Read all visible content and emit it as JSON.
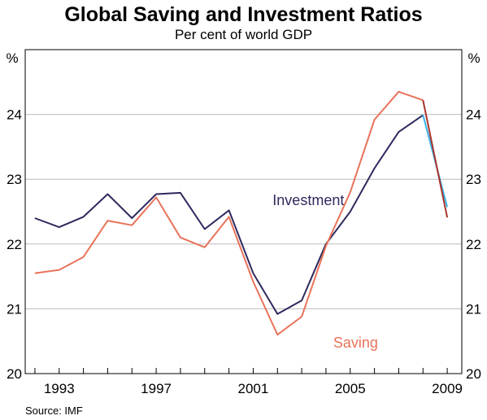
{
  "title": "Global Saving and Investment Ratios",
  "subtitle": "Per cent of world GDP",
  "source": "Source: IMF",
  "chart_data": {
    "type": "line",
    "x": [
      1992,
      1993,
      1994,
      1995,
      1996,
      1997,
      1998,
      1999,
      2000,
      2001,
      2002,
      2003,
      2004,
      2005,
      2006,
      2007,
      2008,
      2009
    ],
    "series": [
      {
        "name": "Investment",
        "color": "#2e2a5e",
        "values": [
          22.4,
          22.26,
          22.42,
          22.77,
          22.4,
          22.77,
          22.79,
          22.23,
          22.52,
          21.55,
          20.92,
          21.13,
          22.0,
          22.5,
          23.17,
          23.73,
          23.99,
          22.57
        ],
        "forecast_from": 2008,
        "forecast_color": "#3ab4e6"
      },
      {
        "name": "Saving",
        "color": "#e8735a",
        "values": [
          21.55,
          21.6,
          21.8,
          22.36,
          22.29,
          22.72,
          22.1,
          21.95,
          22.42,
          21.42,
          20.6,
          20.88,
          21.97,
          22.8,
          23.92,
          24.35,
          24.22,
          22.41
        ],
        "forecast_from": 2008,
        "forecast_color": "#a8322c"
      }
    ],
    "ylim": [
      20,
      25
    ],
    "xlim": [
      1991.6,
      2009.6
    ],
    "yticks": [
      20,
      21,
      22,
      23,
      24
    ],
    "ytick_labels": [
      "20",
      "21",
      "22",
      "23",
      "24"
    ],
    "xticks": [
      1992,
      1993,
      1994,
      1995,
      1996,
      1997,
      1998,
      1999,
      2000,
      2001,
      2002,
      2003,
      2004,
      2005,
      2006,
      2007,
      2008,
      2009
    ],
    "xtick_labels": [
      "1993",
      "1997",
      "2001",
      "2005",
      "2009"
    ],
    "xtick_label_years": [
      1993,
      1997,
      2001,
      2005,
      2009
    ],
    "ylabel_left": "%",
    "ylabel_right": "%",
    "grid": true,
    "annotations": [
      {
        "text": "Investment",
        "series": "Investment",
        "x": 2001.8,
        "y": 22.6
      },
      {
        "text": "Saving",
        "series": "Saving",
        "x": 2004.3,
        "y": 20.4
      }
    ]
  }
}
